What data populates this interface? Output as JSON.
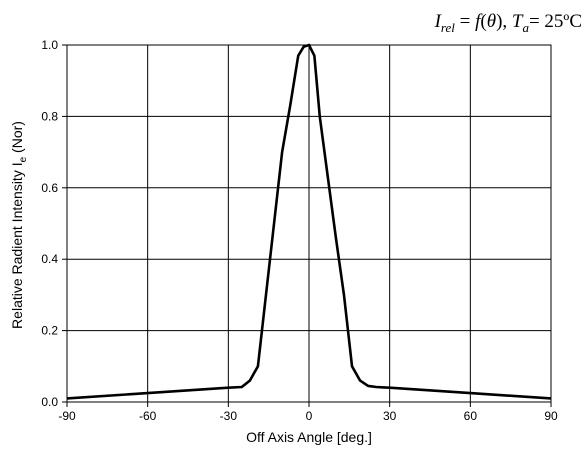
{
  "chart_data": {
    "type": "line",
    "title": "",
    "annotation": {
      "I": "I",
      "rel": "rel",
      "eq1": " = ",
      "f": "f",
      "open": "(",
      "theta": "θ",
      "close": ")",
      "comma": ", ",
      "T": "T",
      "a": "a",
      "eq2": "= 25ºC"
    },
    "xlabel": "Off Axis Angle [deg.]",
    "ylabel": "Relative Radient Intensity I",
    "ylabel_subscript": "e",
    "ylabel_suffix": " (Nor)",
    "xlim": [
      -90,
      90
    ],
    "ylim": [
      0.0,
      1.0
    ],
    "xticks": [
      "-90",
      "-60",
      "-30",
      "0",
      "30",
      "60",
      "90"
    ],
    "yticks": [
      "0.0",
      "0.2",
      "0.4",
      "0.6",
      "0.8",
      "1.0"
    ],
    "grid": true,
    "series": [
      {
        "x": [
          -90,
          -60,
          -30,
          -25,
          -22,
          -19,
          -16,
          -13,
          -10,
          -7,
          -4,
          -2,
          0,
          2,
          4,
          7,
          10,
          13,
          16,
          19,
          22,
          25,
          30,
          60,
          90
        ],
        "y": [
          0.01,
          0.025,
          0.04,
          0.042,
          0.06,
          0.1,
          0.3,
          0.5,
          0.7,
          0.83,
          0.97,
          0.995,
          1.0,
          0.97,
          0.8,
          0.63,
          0.46,
          0.3,
          0.1,
          0.06,
          0.045,
          0.042,
          0.04,
          0.025,
          0.01
        ]
      }
    ],
    "colors": {
      "line": "#000000",
      "grid": "#000000",
      "background": "#ffffff"
    }
  }
}
